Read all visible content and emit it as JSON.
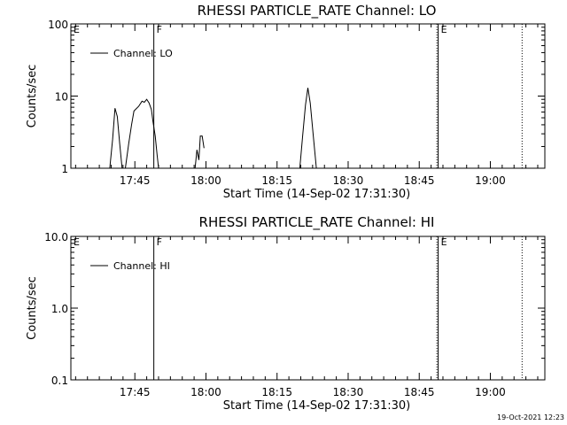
{
  "timestamp": "19-Oct-2021 12:23",
  "chart_data": [
    {
      "type": "line",
      "title": "RHESSI PARTICLE_RATE Channel: LO",
      "xlabel": "Start Time (14-Sep-02 17:31:30)",
      "ylabel": "Counts/sec",
      "yscale": "log",
      "ylim": [
        1,
        100
      ],
      "yticks": [
        1,
        10,
        100
      ],
      "ytick_labels": [
        "1",
        "10",
        "100"
      ],
      "x_unit": "minutes since 17:31:30",
      "xlim": [
        0,
        100
      ],
      "xticks": [
        13.5,
        28.5,
        43.5,
        58.5,
        73.5,
        88.5
      ],
      "xtick_labels": [
        "17:45",
        "18:00",
        "18:15",
        "18:30",
        "18:45",
        "19:00"
      ],
      "legend": {
        "position": "top-left",
        "entries": [
          "Channel: LO"
        ]
      },
      "markers": [
        {
          "label": "E",
          "x": 0,
          "style": "none"
        },
        {
          "label": "F",
          "x": 17.5,
          "style": "solid"
        },
        {
          "label": "E",
          "x": 77.5,
          "style": "dotted-solid"
        },
        {
          "label": "",
          "x": 95.2,
          "style": "dotted"
        }
      ],
      "series": [
        {
          "name": "Channel: LO",
          "segments": [
            [
              [
                8.2,
                1
              ],
              [
                8.8,
                2.5
              ],
              [
                9.3,
                6.8
              ],
              [
                9.8,
                5.2
              ],
              [
                10.3,
                2.2
              ],
              [
                10.8,
                1
              ]
            ],
            [
              [
                11.5,
                1
              ],
              [
                12.2,
                2.2
              ],
              [
                12.8,
                4
              ],
              [
                13.3,
                6.2
              ],
              [
                14.3,
                7.2
              ],
              [
                15.0,
                8.5
              ],
              [
                15.5,
                8.2
              ],
              [
                16.0,
                9.0
              ],
              [
                16.5,
                8.0
              ],
              [
                17.0,
                6.5
              ],
              [
                17.3,
                4.5
              ],
              [
                17.8,
                2.8
              ],
              [
                18.2,
                1.5
              ],
              [
                18.5,
                1
              ]
            ],
            [
              [
                26.2,
                1
              ],
              [
                26.6,
                1.8
              ],
              [
                27.0,
                1.3
              ],
              [
                27.3,
                2.8
              ],
              [
                27.7,
                2.8
              ],
              [
                28.1,
                1.9
              ]
            ],
            [
              [
                48.3,
                1
              ],
              [
                48.9,
                2.8
              ],
              [
                49.5,
                7.5
              ],
              [
                50.0,
                13
              ],
              [
                50.5,
                8
              ],
              [
                51.1,
                3
              ],
              [
                51.8,
                1
              ]
            ]
          ]
        }
      ]
    },
    {
      "type": "line",
      "title": "RHESSI PARTICLE_RATE Channel: HI",
      "xlabel": "Start Time (14-Sep-02 17:31:30)",
      "ylabel": "Counts/sec",
      "yscale": "log",
      "ylim": [
        0.1,
        10
      ],
      "yticks": [
        0.1,
        1,
        10
      ],
      "ytick_labels": [
        "0.1",
        "1.0",
        "10.0"
      ],
      "x_unit": "minutes since 17:31:30",
      "xlim": [
        0,
        100
      ],
      "xticks": [
        13.5,
        28.5,
        43.5,
        58.5,
        73.5,
        88.5
      ],
      "xtick_labels": [
        "17:45",
        "18:00",
        "18:15",
        "18:30",
        "18:45",
        "19:00"
      ],
      "legend": {
        "position": "top-left",
        "entries": [
          "Channel: HI"
        ]
      },
      "markers": [
        {
          "label": "E",
          "x": 0,
          "style": "none"
        },
        {
          "label": "F",
          "x": 17.5,
          "style": "solid"
        },
        {
          "label": "E",
          "x": 77.5,
          "style": "dotted-solid"
        },
        {
          "label": "",
          "x": 95.2,
          "style": "dotted"
        }
      ],
      "series": [
        {
          "name": "Channel: HI",
          "segments": []
        }
      ]
    }
  ]
}
